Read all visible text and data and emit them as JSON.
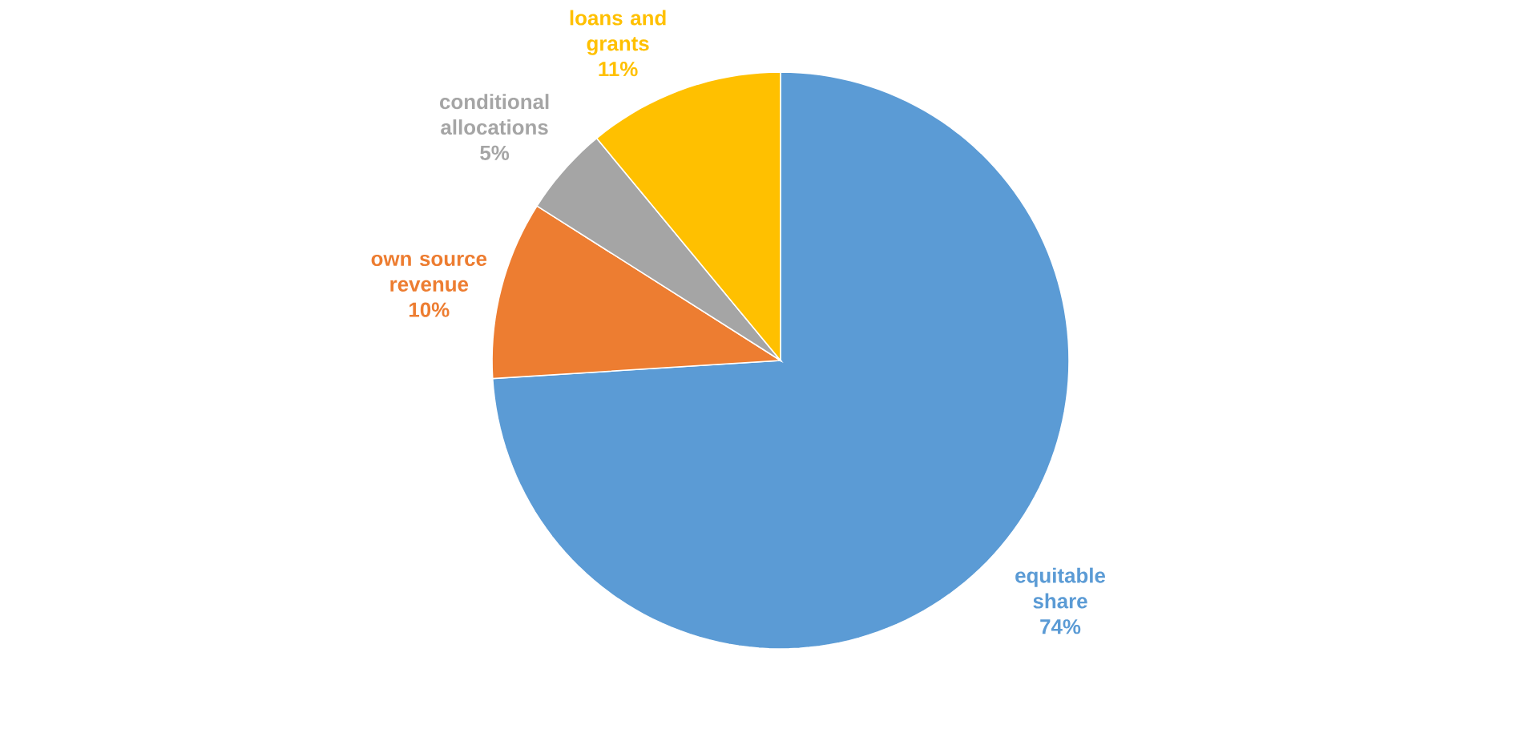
{
  "chart_data": {
    "type": "pie",
    "categories": [
      "equitable share",
      "own source revenue",
      "conditional allocations",
      "loans and grants"
    ],
    "values": [
      74,
      10,
      5,
      11
    ],
    "value_labels": [
      "74%",
      "10%",
      "5%",
      "11%"
    ],
    "colors": [
      "#5b9bd5",
      "#ed7d31",
      "#a5a5a5",
      "#ffc000"
    ],
    "legend": false
  }
}
